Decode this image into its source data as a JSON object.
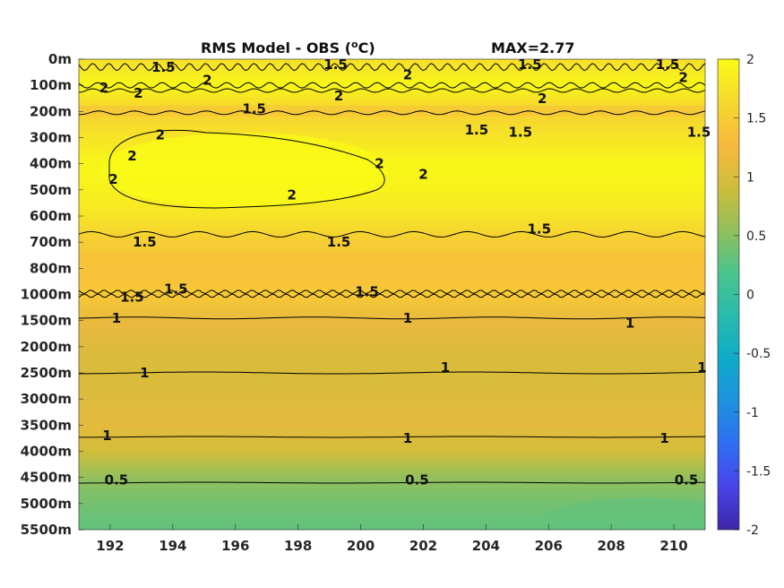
{
  "chart_data": {
    "type": "heatmap",
    "title": "RMS Model - OBS (",
    "title_unit_sup": "o",
    "title_unit": "C)",
    "max_label": "MAX=2.77",
    "xlabel": "",
    "ylabel": "",
    "x_ticks": [
      192,
      194,
      196,
      198,
      200,
      202,
      204,
      206,
      208,
      210
    ],
    "x_tick_labels": [
      "192",
      "194",
      "196",
      "198",
      "200",
      "202",
      "204",
      "206",
      "208",
      "210"
    ],
    "xlim": [
      191,
      211
    ],
    "y_tick_labels": [
      "0m",
      "100m",
      "200m",
      "300m",
      "400m",
      "500m",
      "600m",
      "700m",
      "800m",
      "1000m",
      "1500m",
      "2000m",
      "2500m",
      "3000m",
      "3500m",
      "4000m",
      "4500m",
      "5000m",
      "5500m"
    ],
    "y_reversed": true,
    "colorbar": {
      "range": [
        -2,
        2
      ],
      "ticks": [
        2,
        1.5,
        1,
        0.5,
        0,
        -0.5,
        -1,
        -1.5,
        -2
      ],
      "tick_labels": [
        "2",
        "1.5",
        "1",
        "0.5",
        "0",
        "-0.5",
        "-1",
        "-1.5",
        "-2"
      ],
      "colormap": "parula",
      "colors": [
        "#3e26a8",
        "#4744e9",
        "#2f6ef2",
        "#1e91df",
        "#0fabc8",
        "#28bbad",
        "#4ac48d",
        "#92bf5c",
        "#cebd3a",
        "#f8b93e",
        "#f5d92e",
        "#f9fb15"
      ]
    },
    "field_rows": [
      {
        "depth": "0m",
        "value": 1.7
      },
      {
        "depth": "100m",
        "value": 1.95
      },
      {
        "depth": "200m",
        "value": 1.55
      },
      {
        "depth": "300m",
        "value": 1.75
      },
      {
        "depth": "400m",
        "value": 1.95
      },
      {
        "depth": "500m",
        "value": 1.9
      },
      {
        "depth": "600m",
        "value": 1.75
      },
      {
        "depth": "700m",
        "value": 1.5
      },
      {
        "depth": "800m",
        "value": 1.42
      },
      {
        "depth": "1000m",
        "value": 1.45
      },
      {
        "depth": "1500m",
        "value": 1.15
      },
      {
        "depth": "2000m",
        "value": 1.05
      },
      {
        "depth": "2500m",
        "value": 1.0
      },
      {
        "depth": "3000m",
        "value": 1.05
      },
      {
        "depth": "3500m",
        "value": 1.1
      },
      {
        "depth": "4000m",
        "value": 0.95
      },
      {
        "depth": "4500m",
        "value": 0.55
      },
      {
        "depth": "5000m",
        "value": 0.4
      },
      {
        "depth": "5500m",
        "value": 0.3
      }
    ],
    "contour_labels": [
      {
        "text": "1.5",
        "x": 193.7,
        "depth_row": 0.3
      },
      {
        "text": "1.5",
        "x": 199.2,
        "depth_row": 0.2
      },
      {
        "text": "1.5",
        "x": 205.4,
        "depth_row": 0.2
      },
      {
        "text": "1.5",
        "x": 209.8,
        "depth_row": 0.2
      },
      {
        "text": "2",
        "x": 191.8,
        "depth_row": 1.1
      },
      {
        "text": "2",
        "x": 192.9,
        "depth_row": 1.3
      },
      {
        "text": "2",
        "x": 195.1,
        "depth_row": 0.8
      },
      {
        "text": "2",
        "x": 201.5,
        "depth_row": 0.6
      },
      {
        "text": "2",
        "x": 199.3,
        "depth_row": 1.4
      },
      {
        "text": "2",
        "x": 205.8,
        "depth_row": 1.5
      },
      {
        "text": "2",
        "x": 210.3,
        "depth_row": 0.7
      },
      {
        "text": "1.5",
        "x": 196.6,
        "depth_row": 1.9
      },
      {
        "text": "1.5",
        "x": 203.7,
        "depth_row": 2.7
      },
      {
        "text": "1.5",
        "x": 205.1,
        "depth_row": 2.8
      },
      {
        "text": "1.5",
        "x": 210.8,
        "depth_row": 2.8
      },
      {
        "text": "2",
        "x": 193.6,
        "depth_row": 2.9
      },
      {
        "text": "2",
        "x": 192.7,
        "depth_row": 3.7
      },
      {
        "text": "2",
        "x": 192.1,
        "depth_row": 4.6
      },
      {
        "text": "2",
        "x": 197.8,
        "depth_row": 5.2
      },
      {
        "text": "2",
        "x": 200.6,
        "depth_row": 4.0
      },
      {
        "text": "2",
        "x": 202.0,
        "depth_row": 4.4
      },
      {
        "text": "1.5",
        "x": 193.1,
        "depth_row": 7.0
      },
      {
        "text": "1.5",
        "x": 199.3,
        "depth_row": 7.0
      },
      {
        "text": "1.5",
        "x": 205.7,
        "depth_row": 6.5
      },
      {
        "text": "1.5",
        "x": 192.7,
        "depth_row": 9.1
      },
      {
        "text": "1.5",
        "x": 194.1,
        "depth_row": 8.8
      },
      {
        "text": "1.5",
        "x": 200.2,
        "depth_row": 8.9
      },
      {
        "text": "1",
        "x": 192.2,
        "depth_row": 9.9
      },
      {
        "text": "1",
        "x": 201.5,
        "depth_row": 9.9
      },
      {
        "text": "1",
        "x": 208.6,
        "depth_row": 10.1
      },
      {
        "text": "1",
        "x": 193.1,
        "depth_row": 12.0
      },
      {
        "text": "1",
        "x": 202.7,
        "depth_row": 11.8
      },
      {
        "text": "1",
        "x": 210.9,
        "depth_row": 11.8
      },
      {
        "text": "1",
        "x": 191.9,
        "depth_row": 14.4
      },
      {
        "text": "1",
        "x": 201.5,
        "depth_row": 14.5
      },
      {
        "text": "1",
        "x": 209.7,
        "depth_row": 14.5
      },
      {
        "text": "0.5",
        "x": 192.2,
        "depth_row": 16.1
      },
      {
        "text": "0.5",
        "x": 201.8,
        "depth_row": 16.1
      },
      {
        "text": "0.5",
        "x": 210.4,
        "depth_row": 16.1
      }
    ]
  }
}
